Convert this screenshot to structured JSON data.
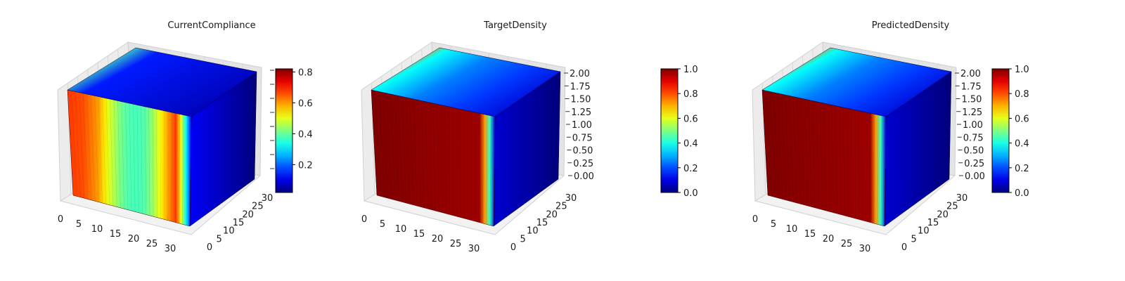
{
  "chart_data": [
    {
      "type": "3d-voxel",
      "title": "CurrentCompliance",
      "x_ticks": [
        "0",
        "5",
        "10",
        "15",
        "20",
        "25",
        "30"
      ],
      "y_ticks": [
        "0",
        "5",
        "10",
        "15",
        "20",
        "25",
        "30"
      ],
      "z_ticks": [],
      "colorbar": {
        "ticks": [
          "0.2",
          "0.4",
          "0.6",
          "0.8"
        ],
        "range": [
          0.02,
          0.82
        ]
      },
      "colormap": "jet",
      "front_face_profile": {
        "x": [
          0,
          4,
          8,
          10,
          12,
          14,
          16,
          18,
          20,
          22,
          24,
          26,
          28,
          30,
          32
        ],
        "value": [
          0.82,
          0.8,
          0.72,
          0.62,
          0.55,
          0.48,
          0.45,
          0.44,
          0.46,
          0.52,
          0.62,
          0.72,
          0.82,
          0.5,
          0.12
        ]
      }
    },
    {
      "type": "3d-voxel",
      "title": "TargetDensity",
      "x_ticks": [
        "0",
        "5",
        "10",
        "15",
        "20",
        "25",
        "30"
      ],
      "y_ticks": [
        "0",
        "5",
        "10",
        "15",
        "20",
        "25",
        "30"
      ],
      "z_ticks": [
        "0.00",
        "0.25",
        "0.50",
        "0.75",
        "1.00",
        "1.25",
        "1.50",
        "1.75",
        "2.00"
      ],
      "zlim": [
        0,
        2
      ],
      "colorbar": {
        "ticks": [
          "0.0",
          "0.2",
          "0.4",
          "0.6",
          "0.8",
          "1.0"
        ],
        "range": [
          0,
          1
        ]
      },
      "colormap": "jet",
      "front_face_profile": {
        "x": [
          0,
          28,
          30,
          32
        ],
        "value": [
          1.0,
          0.97,
          0.6,
          0.08
        ]
      }
    },
    {
      "type": "3d-voxel",
      "title": "PredictedDensity",
      "x_ticks": [
        "0",
        "5",
        "10",
        "15",
        "20",
        "25",
        "30"
      ],
      "y_ticks": [
        "0",
        "5",
        "10",
        "15",
        "20",
        "25",
        "30"
      ],
      "z_ticks": [
        "0.00",
        "0.25",
        "0.50",
        "0.75",
        "1.00",
        "1.25",
        "1.50",
        "1.75",
        "2.00"
      ],
      "zlim": [
        0,
        2
      ],
      "colorbar": {
        "ticks": [
          "0.0",
          "0.2",
          "0.4",
          "0.6",
          "0.8",
          "1.0"
        ],
        "range": [
          0,
          1
        ]
      },
      "colormap": "jet",
      "front_face_profile": {
        "x": [
          0,
          28,
          30,
          32
        ],
        "value": [
          1.0,
          0.97,
          0.6,
          0.08
        ]
      }
    }
  ]
}
